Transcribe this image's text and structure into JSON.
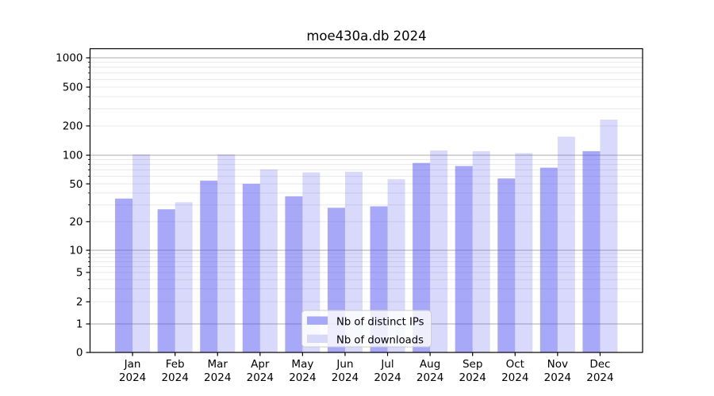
{
  "chart_data": {
    "type": "bar",
    "title": "moe430a.db 2024",
    "categories": [
      "Jan",
      "Feb",
      "Mar",
      "Apr",
      "May",
      "Jun",
      "Jul",
      "Aug",
      "Sep",
      "Oct",
      "Nov",
      "Dec"
    ],
    "category_year": "2024",
    "series": [
      {
        "name": "Nb of distinct IPs",
        "color": "rgba(81,81,241,0.50)",
        "legend_color": "#a8a8f8",
        "values": [
          35,
          27,
          54,
          50,
          37,
          28,
          29,
          83,
          77,
          57,
          74,
          110
        ]
      },
      {
        "name": "Nb of downloads",
        "color": "rgba(81,81,241,0.22)",
        "legend_color": "#d8d8fa",
        "values": [
          102,
          32,
          102,
          71,
          66,
          67,
          56,
          112,
          110,
          105,
          155,
          232
        ]
      }
    ],
    "xlabel": "",
    "ylabel": "",
    "yscale": "log with 0 baseline",
    "yticks": [
      0,
      1,
      2,
      5,
      10,
      20,
      50,
      100,
      200,
      500,
      1000
    ],
    "ylim": [
      0,
      1270
    ],
    "grid": true,
    "legend_position": "bottom-center",
    "colors": {
      "major_grid": "#ababab",
      "minor_grid": "#e8e8e8",
      "spine": "#000000",
      "legend_border": "#cccccc",
      "legend_background": "rgba(255,255,255,0.8)"
    }
  }
}
